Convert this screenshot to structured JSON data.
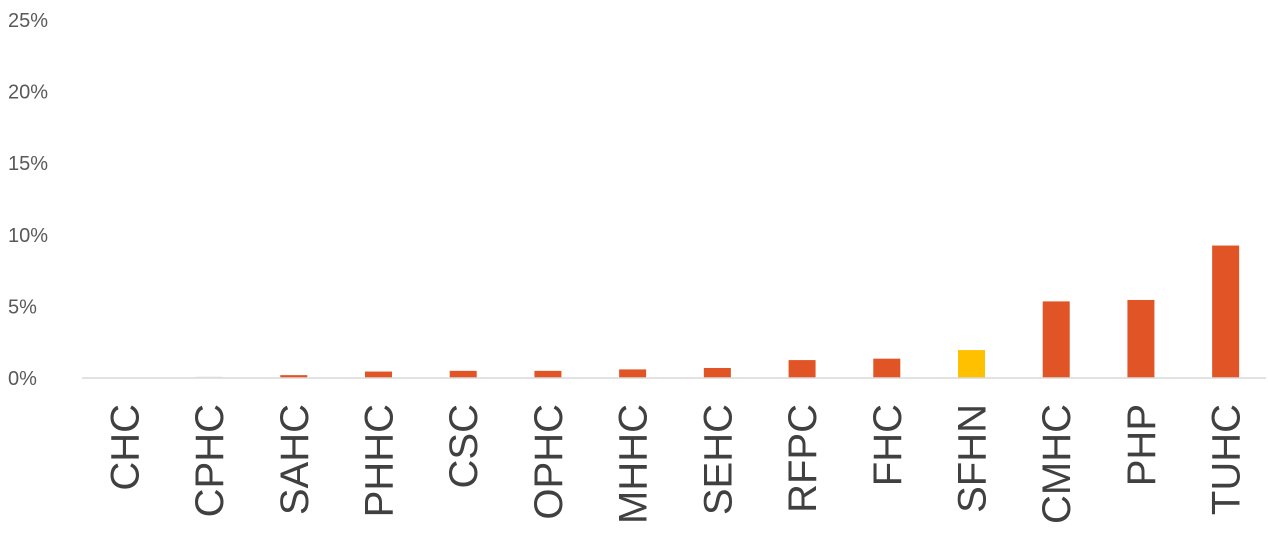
{
  "chart_data": {
    "type": "bar",
    "categories": [
      "CHC",
      "CPHC",
      "SAHC",
      "PHHC",
      "CSC",
      "OPHC",
      "MHHC",
      "SEHC",
      "RFPC",
      "FHC",
      "SFHN",
      "CMHC",
      "PHP",
      "TUHC"
    ],
    "values": [
      0.0,
      0.1,
      0.2,
      0.45,
      0.5,
      0.5,
      0.6,
      0.7,
      1.25,
      1.35,
      1.95,
      5.35,
      5.45,
      9.25
    ],
    "colors": [
      "#e05426",
      "#f2e6dc",
      "#e05426",
      "#e05426",
      "#e05426",
      "#e05426",
      "#e05426",
      "#e05426",
      "#e05426",
      "#e05426",
      "#ffc000",
      "#e05426",
      "#e05426",
      "#e05426"
    ],
    "yticks": [
      "0%",
      "5%",
      "10%",
      "15%",
      "20%",
      "25%"
    ],
    "ylim": [
      0,
      25
    ],
    "grid": false,
    "legend": "none",
    "title": "",
    "xlabel": "",
    "ylabel": ""
  }
}
